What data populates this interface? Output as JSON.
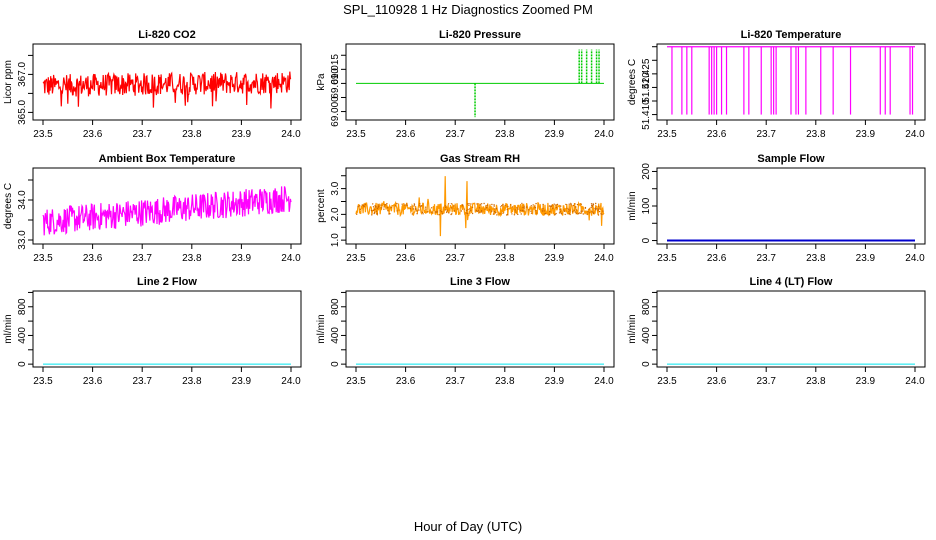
{
  "figure_title": "SPL_110928  1 Hz Diagnostics Zoomed PM",
  "shared_xlabel": "Hour of Day (UTC)",
  "chart_data": [
    {
      "type": "line",
      "title": "Li-820 CO2",
      "ylabel": "Licor ppm",
      "x": [
        23.5,
        24.0
      ],
      "xticks": [
        23.5,
        23.6,
        23.7,
        23.8,
        23.9,
        24.0
      ],
      "xtick_labels": [
        "23.5",
        "23.6",
        "23.7",
        "23.8",
        "23.9",
        "24.0"
      ],
      "ylim": [
        364.6,
        368.6
      ],
      "yticks": [
        365.0,
        366.0,
        367.0,
        368.0
      ],
      "ytick_labels": [
        "365.0",
        "",
        "367.0",
        ""
      ],
      "color": "#ff0000",
      "series": [
        {
          "name": "CO2",
          "style": "noise",
          "base": [
            366.4,
            366.6
          ],
          "amplitude": 0.6,
          "spikes_low": [
            365.2,
            365.6
          ]
        }
      ]
    },
    {
      "type": "line",
      "title": "Li-820 Pressure",
      "ylabel": "kPa",
      "x": [
        23.5,
        24.0
      ],
      "xticks": [
        23.5,
        23.6,
        23.7,
        23.8,
        23.9,
        24.0
      ],
      "xtick_labels": [
        "23.5",
        "23.6",
        "23.7",
        "23.8",
        "23.9",
        "24.0"
      ],
      "ylim": [
        68.997,
        69.024
      ],
      "yticks": [
        69.0,
        69.005,
        69.01,
        69.015,
        69.02
      ],
      "ytick_labels": [
        "69.000",
        "",
        "69.010",
        "69.015",
        ""
      ],
      "color": "#00cc00",
      "series": [
        {
          "name": "Pressure",
          "style": "baseline-spikes",
          "base": 69.01,
          "spikes": [
            [
              23.74,
              68.998
            ],
            [
              23.95,
              69.022
            ],
            [
              23.955,
              69.022
            ],
            [
              23.965,
              69.022
            ],
            [
              23.975,
              69.022
            ],
            [
              23.985,
              69.022
            ],
            [
              23.99,
              69.022
            ]
          ]
        }
      ]
    },
    {
      "type": "line",
      "title": "Li-820 Temperature",
      "ylabel": "degrees C",
      "x": [
        23.5,
        24.0
      ],
      "xticks": [
        23.5,
        23.6,
        23.7,
        23.8,
        23.9,
        24.0
      ],
      "xtick_labels": [
        "23.5",
        "23.6",
        "23.7",
        "23.8",
        "23.9",
        "24.0"
      ],
      "ylim": [
        51.408,
        51.436
      ],
      "yticks": [
        51.41,
        51.415,
        51.42,
        51.425,
        51.43,
        51.435
      ],
      "ytick_labels": [
        "51.410",
        "",
        "51.420",
        "51.425",
        "",
        ""
      ],
      "color": "#ff00ff",
      "series": [
        {
          "name": "Temperature",
          "style": "top-drops",
          "base": 51.435,
          "drop_to": 51.41,
          "drops": [
            23.51,
            23.53,
            23.54,
            23.55,
            23.585,
            23.59,
            23.595,
            23.6,
            23.61,
            23.62,
            23.655,
            23.665,
            23.69,
            23.71,
            23.715,
            23.72,
            23.75,
            23.76,
            23.765,
            23.78,
            23.81,
            23.835,
            23.87,
            23.93,
            23.94,
            23.95,
            23.99,
            23.995
          ]
        }
      ]
    },
    {
      "type": "line",
      "title": "Ambient Box Temperature",
      "ylabel": "degrees C",
      "x": [
        23.5,
        24.0
      ],
      "xticks": [
        23.5,
        23.6,
        23.7,
        23.8,
        23.9,
        24.0
      ],
      "xtick_labels": [
        "23.5",
        "23.6",
        "23.7",
        "23.8",
        "23.9",
        "24.0"
      ],
      "ylim": [
        32.9,
        34.8
      ],
      "yticks": [
        33.0,
        33.5,
        34.0,
        34.5
      ],
      "ytick_labels": [
        "33.0",
        "",
        "34.0",
        ""
      ],
      "color": "#ff00ff",
      "series": [
        {
          "name": "Ambient",
          "style": "noise",
          "base": [
            33.45,
            34.05
          ],
          "amplitude": 0.35
        }
      ]
    },
    {
      "type": "line",
      "title": "Gas Stream RH",
      "ylabel": "percent",
      "x": [
        23.5,
        24.0
      ],
      "xticks": [
        23.5,
        23.6,
        23.7,
        23.8,
        23.9,
        24.0
      ],
      "xtick_labels": [
        "23.5",
        "23.6",
        "23.7",
        "23.8",
        "23.9",
        "24.0"
      ],
      "ylim": [
        0.85,
        3.8
      ],
      "yticks": [
        1.0,
        1.5,
        2.0,
        2.5,
        3.0,
        3.5
      ],
      "ytick_labels": [
        "1.0",
        "",
        "2.0",
        "",
        "3.0",
        ""
      ],
      "color": "#ff9900",
      "series": [
        {
          "name": "RH",
          "style": "noise",
          "base": [
            2.2,
            2.2
          ],
          "amplitude": 0.25,
          "dots": "#cc6600"
        }
      ]
    },
    {
      "type": "line",
      "title": "Sample Flow",
      "ylabel": "ml/min",
      "x": [
        23.5,
        24.0
      ],
      "xticks": [
        23.5,
        23.6,
        23.7,
        23.8,
        23.9,
        24.0
      ],
      "xtick_labels": [
        "23.5",
        "23.6",
        "23.7",
        "23.8",
        "23.9",
        "24.0"
      ],
      "ylim": [
        -10,
        210
      ],
      "yticks": [
        0,
        50,
        100,
        150,
        200
      ],
      "ytick_labels": [
        "0",
        "",
        "100",
        "",
        "200"
      ],
      "color": "#0000cc",
      "series": [
        {
          "name": "Sample Flow",
          "style": "flat",
          "value": 0
        }
      ]
    },
    {
      "type": "line",
      "title": "Line 2 Flow",
      "ylabel": "ml/min",
      "x": [
        23.5,
        24.0
      ],
      "xticks": [
        23.5,
        23.6,
        23.7,
        23.8,
        23.9,
        24.0
      ],
      "xtick_labels": [
        "23.5",
        "23.6",
        "23.7",
        "23.8",
        "23.9",
        "24.0"
      ],
      "ylim": [
        -40,
        1020
      ],
      "yticks": [
        0,
        200,
        400,
        600,
        800,
        1000
      ],
      "ytick_labels": [
        "0",
        "",
        "400",
        "",
        "800",
        ""
      ],
      "color": "#00e5ee",
      "series": [
        {
          "name": "Line 2",
          "style": "flat",
          "value": 0
        }
      ]
    },
    {
      "type": "line",
      "title": "Line 3 Flow",
      "ylabel": "ml/min",
      "x": [
        23.5,
        24.0
      ],
      "xticks": [
        23.5,
        23.6,
        23.7,
        23.8,
        23.9,
        24.0
      ],
      "xtick_labels": [
        "23.5",
        "23.6",
        "23.7",
        "23.8",
        "23.9",
        "24.0"
      ],
      "ylim": [
        -40,
        1020
      ],
      "yticks": [
        0,
        200,
        400,
        600,
        800,
        1000
      ],
      "ytick_labels": [
        "0",
        "",
        "400",
        "",
        "800",
        ""
      ],
      "color": "#00e5ee",
      "series": [
        {
          "name": "Line 3",
          "style": "flat",
          "value": 0
        }
      ]
    },
    {
      "type": "line",
      "title": "Line 4 (LT) Flow",
      "ylabel": "ml/min",
      "x": [
        23.5,
        24.0
      ],
      "xticks": [
        23.5,
        23.6,
        23.7,
        23.8,
        23.9,
        24.0
      ],
      "xtick_labels": [
        "23.5",
        "23.6",
        "23.7",
        "23.8",
        "23.9",
        "24.0"
      ],
      "ylim": [
        -40,
        1020
      ],
      "yticks": [
        0,
        200,
        400,
        600,
        800,
        1000
      ],
      "ytick_labels": [
        "0",
        "",
        "400",
        "",
        "800",
        ""
      ],
      "color": "#00e5ee",
      "series": [
        {
          "name": "Line 4",
          "style": "flat",
          "value": 0
        }
      ]
    }
  ]
}
